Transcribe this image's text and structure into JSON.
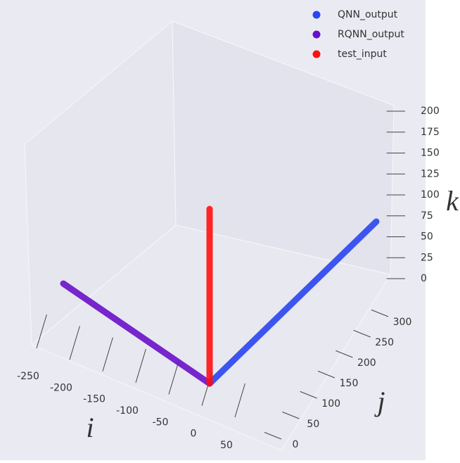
{
  "chart_data": {
    "type": "scatter3d",
    "xlabel": "i",
    "ylabel": "j",
    "zlabel": "k",
    "xlim": [
      -250,
      50
    ],
    "ylim": [
      0,
      300
    ],
    "zlim": [
      0,
      200
    ],
    "xticks": [
      -250,
      -200,
      -150,
      -100,
      -50,
      0,
      50
    ],
    "yticks": [
      0,
      50,
      100,
      150,
      200,
      250,
      300
    ],
    "zticks": [
      0,
      25,
      50,
      75,
      100,
      125,
      150,
      175,
      200
    ],
    "legend": "upper right",
    "series": [
      {
        "name": "QNN_output",
        "color": "#2a45f0",
        "x": [
          0,
          0
        ],
        "y": [
          0,
          300
        ],
        "z": [
          0,
          0
        ]
      },
      {
        "name": "RQNN_output",
        "color": "#6a10c8",
        "x": [
          0,
          -250
        ],
        "y": [
          0,
          0
        ],
        "z": [
          0,
          0
        ]
      },
      {
        "name": "test_input",
        "color": "#ff1010",
        "x": [
          0,
          0
        ],
        "y": [
          0,
          0
        ],
        "z": [
          0,
          200
        ]
      }
    ]
  }
}
